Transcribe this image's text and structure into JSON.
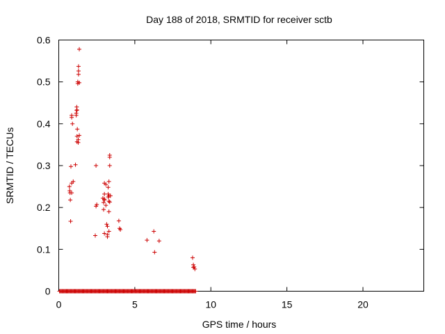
{
  "chart_data": {
    "type": "scatter",
    "title": "Day 188 of 2018, SRMTID for receiver sctb",
    "xlabel": "GPS time / hours",
    "ylabel": "SRMTID / TECUs",
    "xlim": [
      0,
      24
    ],
    "ylim": [
      0,
      0.6
    ],
    "xticks": [
      0,
      5,
      10,
      15,
      20
    ],
    "yticks": [
      0,
      0.1,
      0.2,
      0.3,
      0.4,
      0.5,
      0.6
    ],
    "xtick_labels": [
      "0",
      "5",
      "10",
      "15",
      "20"
    ],
    "ytick_labels": [
      "0",
      "0.1",
      "0.2",
      "0.3",
      "0.4",
      "0.5",
      "0.6"
    ],
    "grid": false,
    "marker": "+",
    "color": "#cc0000",
    "zero_baseline": {
      "y": 0,
      "x_start": 0.05,
      "x_end": 9.0,
      "step": 0.05
    },
    "series": [
      {
        "name": "SRMTID",
        "points": [
          [
            0.7,
            0.25
          ],
          [
            0.72,
            0.24
          ],
          [
            0.74,
            0.235
          ],
          [
            0.76,
            0.218
          ],
          [
            0.78,
            0.167
          ],
          [
            0.8,
            0.298
          ],
          [
            0.85,
            0.258
          ],
          [
            0.85,
            0.235
          ],
          [
            0.85,
            0.42
          ],
          [
            0.85,
            0.415
          ],
          [
            0.9,
            0.4
          ],
          [
            0.95,
            0.262
          ],
          [
            1.1,
            0.302
          ],
          [
            1.15,
            0.42
          ],
          [
            1.15,
            0.425
          ],
          [
            1.18,
            0.432
          ],
          [
            1.18,
            0.44
          ],
          [
            1.2,
            0.433
          ],
          [
            1.2,
            0.37
          ],
          [
            1.2,
            0.357
          ],
          [
            1.22,
            0.387
          ],
          [
            1.25,
            0.5
          ],
          [
            1.25,
            0.496
          ],
          [
            1.28,
            0.362
          ],
          [
            1.28,
            0.355
          ],
          [
            1.3,
            0.526
          ],
          [
            1.3,
            0.518
          ],
          [
            1.3,
            0.537
          ],
          [
            1.35,
            0.578
          ],
          [
            1.35,
            0.498
          ],
          [
            1.35,
            0.372
          ],
          [
            2.4,
            0.133
          ],
          [
            2.45,
            0.203
          ],
          [
            2.45,
            0.3
          ],
          [
            2.5,
            0.207
          ],
          [
            2.9,
            0.222
          ],
          [
            2.95,
            0.212
          ],
          [
            2.95,
            0.195
          ],
          [
            3.0,
            0.258
          ],
          [
            3.0,
            0.232
          ],
          [
            3.0,
            0.218
          ],
          [
            3.0,
            0.22
          ],
          [
            3.0,
            0.138
          ],
          [
            3.1,
            0.205
          ],
          [
            3.1,
            0.255
          ],
          [
            3.15,
            0.16
          ],
          [
            3.2,
            0.155
          ],
          [
            3.2,
            0.135
          ],
          [
            3.2,
            0.13
          ],
          [
            3.25,
            0.248
          ],
          [
            3.25,
            0.232
          ],
          [
            3.25,
            0.225
          ],
          [
            3.3,
            0.262
          ],
          [
            3.3,
            0.228
          ],
          [
            3.3,
            0.215
          ],
          [
            3.3,
            0.19
          ],
          [
            3.3,
            0.143
          ],
          [
            3.35,
            0.325
          ],
          [
            3.35,
            0.32
          ],
          [
            3.35,
            0.3
          ],
          [
            3.35,
            0.213
          ],
          [
            3.4,
            0.228
          ],
          [
            3.95,
            0.168
          ],
          [
            4.0,
            0.15
          ],
          [
            4.05,
            0.147
          ],
          [
            5.8,
            0.122
          ],
          [
            6.25,
            0.143
          ],
          [
            6.3,
            0.093
          ],
          [
            6.6,
            0.12
          ],
          [
            8.8,
            0.08
          ],
          [
            8.85,
            0.063
          ],
          [
            8.85,
            0.057
          ],
          [
            8.9,
            0.058
          ],
          [
            8.95,
            0.053
          ]
        ]
      }
    ]
  }
}
